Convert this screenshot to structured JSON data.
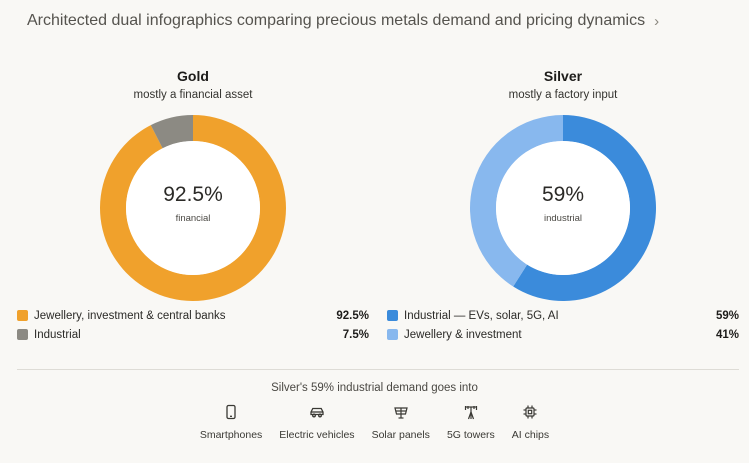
{
  "header": {
    "title": "Architected dual infographics comparing precious metals demand and pricing dynamics",
    "chevron": "›"
  },
  "colors": {
    "gold_primary": "#f0a12c",
    "gold_secondary": "#8c8a83",
    "silver_primary": "#3b8bdb",
    "silver_secondary": "#88b8ee"
  },
  "chart_data": [
    {
      "type": "pie",
      "title": "Gold",
      "subtitle": "mostly a financial asset",
      "center_value": "92.5%",
      "center_label": "financial",
      "categories": [
        "Jewellery, investment & central banks",
        "Industrial"
      ],
      "values": [
        92.5,
        7.5
      ],
      "value_labels": [
        "92.5%",
        "7.5%"
      ],
      "colors": [
        "#f0a12c",
        "#8c8a83"
      ],
      "legend": "bottom"
    },
    {
      "type": "pie",
      "title": "Silver",
      "subtitle": "mostly a factory input",
      "center_value": "59%",
      "center_label": "industrial",
      "categories": [
        "Industrial — EVs, solar, 5G, AI",
        "Jewellery & investment"
      ],
      "values": [
        59,
        41
      ],
      "value_labels": [
        "59%",
        "41%"
      ],
      "colors": [
        "#3b8bdb",
        "#88b8ee"
      ],
      "legend": "bottom"
    }
  ],
  "uses": {
    "title": "Silver's 59% industrial demand goes into",
    "items": [
      {
        "label": "Smartphones",
        "icon": "smartphone-icon"
      },
      {
        "label": "Electric vehicles",
        "icon": "car-icon"
      },
      {
        "label": "Solar panels",
        "icon": "solar-panel-icon"
      },
      {
        "label": "5G towers",
        "icon": "tower-icon"
      },
      {
        "label": "AI chips",
        "icon": "chip-icon"
      }
    ]
  }
}
